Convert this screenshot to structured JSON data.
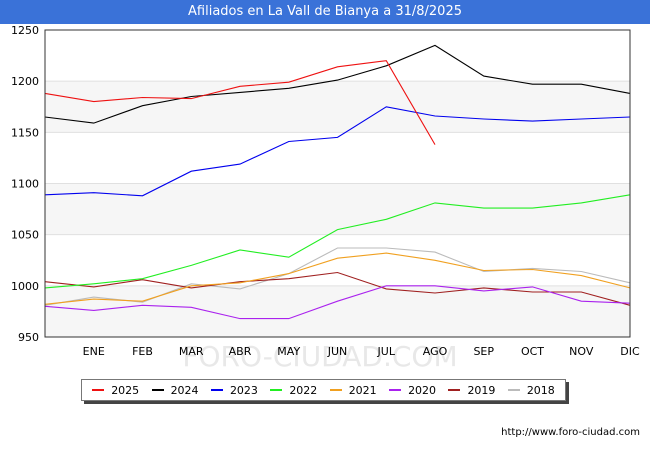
{
  "title": "Afiliados en La Vall de Bianya a 31/8/2025",
  "source": "http://www.foro-ciudad.com",
  "watermark": "FORO-CIUDAD.COM",
  "chart_data": {
    "type": "line",
    "title": "Afiliados en La Vall de Bianya a 31/8/2025",
    "xlabel": "",
    "ylabel": "",
    "ylim": [
      950,
      1250
    ],
    "y_ticks": [
      950,
      1000,
      1050,
      1100,
      1150,
      1200,
      1250
    ],
    "grid": true,
    "legend_position": "bottom",
    "categories": [
      "",
      "ENE",
      "FEB",
      "MAR",
      "ABR",
      "MAY",
      "JUN",
      "JUL",
      "AGO",
      "SEP",
      "OCT",
      "NOV",
      "DIC"
    ],
    "series": [
      {
        "name": "2025",
        "color": "#ee1111",
        "values": [
          1188,
          1180,
          1184,
          1183,
          1195,
          1199,
          1214,
          1220,
          1138,
          null,
          null,
          null,
          null
        ]
      },
      {
        "name": "2024",
        "color": "#000000",
        "values": [
          1165,
          1159,
          1176,
          1185,
          1189,
          1193,
          1201,
          1215,
          1235,
          1205,
          1197,
          1197,
          1188
        ]
      },
      {
        "name": "2023",
        "color": "#0000ee",
        "values": [
          1089,
          1091,
          1088,
          1112,
          1119,
          1141,
          1145,
          1175,
          1166,
          1163,
          1161,
          1163,
          1165
        ]
      },
      {
        "name": "2022",
        "color": "#22ee22",
        "values": [
          998,
          1002,
          1007,
          1020,
          1035,
          1028,
          1055,
          1065,
          1081,
          1076,
          1076,
          1081,
          1089
        ]
      },
      {
        "name": "2021",
        "color": "#f0a020",
        "values": [
          982,
          987,
          985,
          1000,
          1003,
          1012,
          1027,
          1032,
          1025,
          1015,
          1016,
          1010,
          998
        ]
      },
      {
        "name": "2020",
        "color": "#aa22ee",
        "values": [
          980,
          976,
          981,
          979,
          968,
          968,
          985,
          1000,
          1000,
          995,
          999,
          985,
          983
        ]
      },
      {
        "name": "2019",
        "color": "#a02020",
        "values": [
          1004,
          999,
          1006,
          998,
          1004,
          1007,
          1013,
          997,
          993,
          998,
          994,
          994,
          981
        ]
      },
      {
        "name": "2018",
        "color": "#bbbbbb",
        "values": [
          981,
          989,
          984,
          1002,
          997,
          1012,
          1037,
          1037,
          1033,
          1014,
          1017,
          1014,
          1003
        ]
      }
    ]
  }
}
